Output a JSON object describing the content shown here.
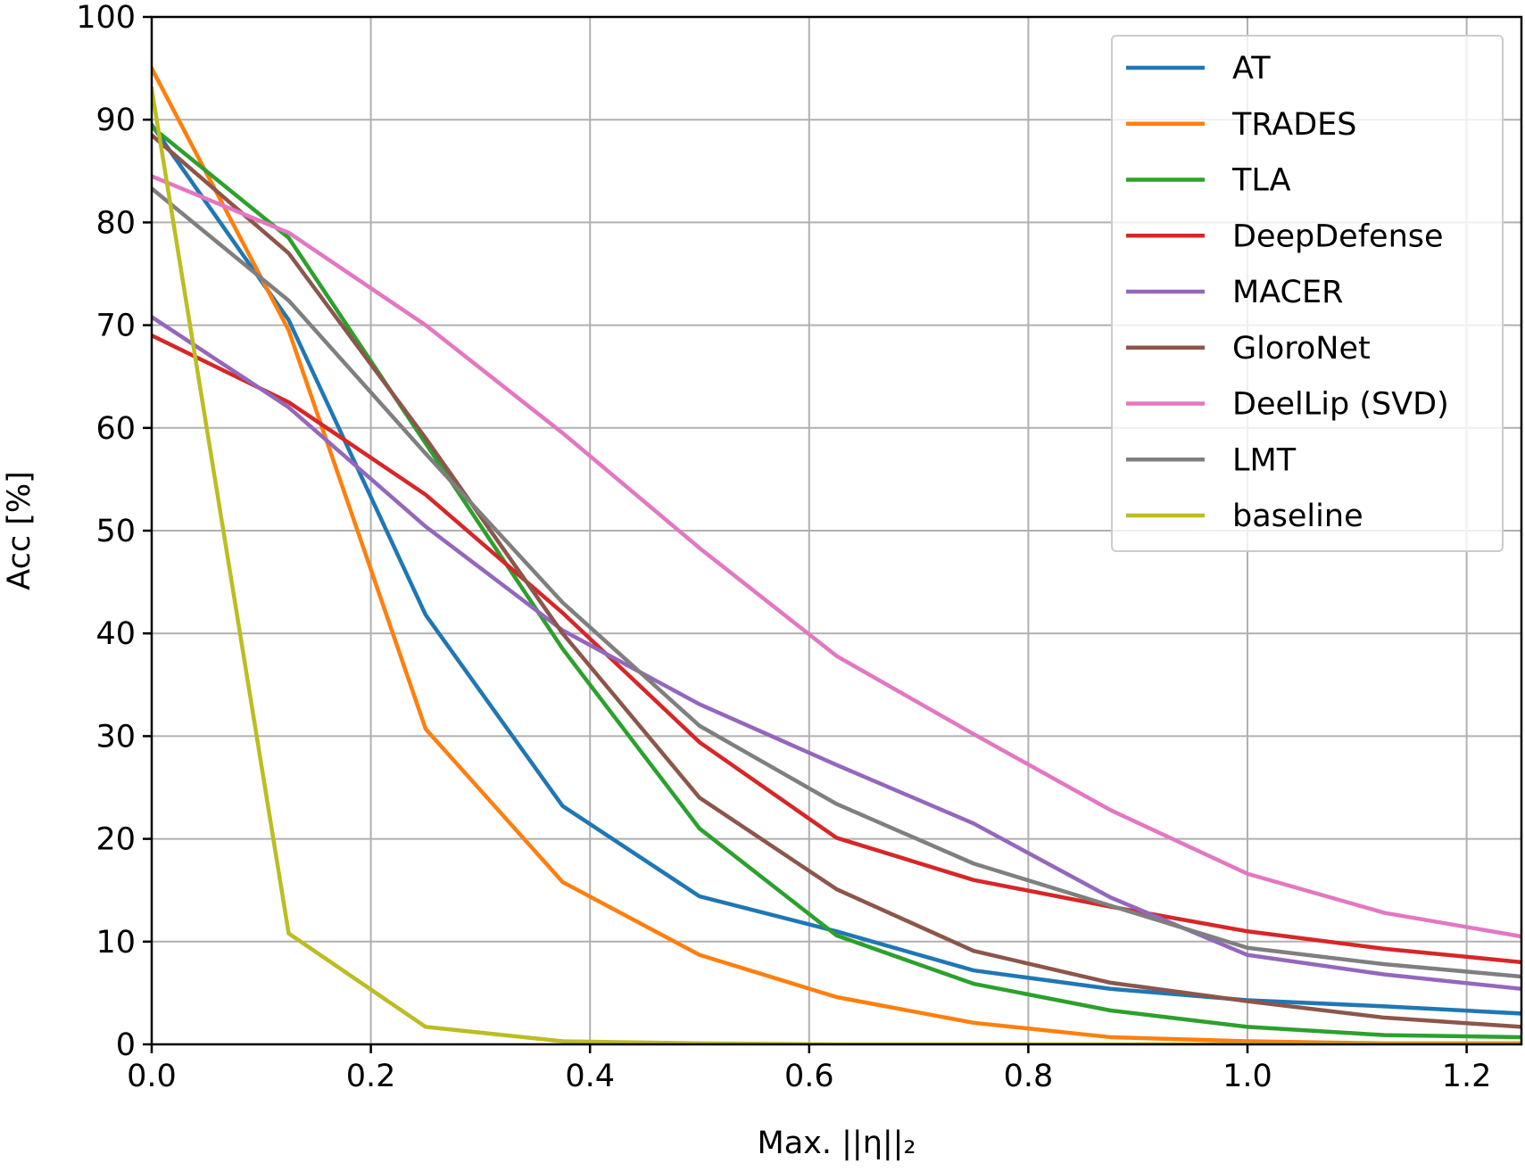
{
  "chart_data": {
    "type": "line",
    "xlabel": "Max. ||η||₂",
    "ylabel": "Acc [%]",
    "xlim": [
      0.0,
      1.25
    ],
    "ylim": [
      0,
      100
    ],
    "xticks": [
      "0.0",
      "0.2",
      "0.4",
      "0.6",
      "0.8",
      "1.0",
      "1.2"
    ],
    "yticks": [
      "0",
      "10",
      "20",
      "30",
      "40",
      "50",
      "60",
      "70",
      "80",
      "90",
      "100"
    ],
    "grid": true,
    "legend_position": "top-right",
    "x": [
      0.0,
      0.125,
      0.25,
      0.375,
      0.5,
      0.625,
      0.75,
      0.875,
      1.0,
      1.125,
      1.25
    ],
    "series": [
      {
        "name": "AT",
        "color": "#1f77b4",
        "values": [
          89.5,
          70.5,
          41.8,
          23.2,
          14.4,
          11.0,
          7.2,
          5.4,
          4.3,
          3.7,
          3.0
        ]
      },
      {
        "name": "TRADES",
        "color": "#ff7f0e",
        "values": [
          95.0,
          69.5,
          30.7,
          15.8,
          8.7,
          4.6,
          2.1,
          0.7,
          0.3,
          0.1,
          0.1
        ]
      },
      {
        "name": "TLA",
        "color": "#2ca02c",
        "values": [
          89.3,
          78.5,
          58.5,
          38.5,
          21.0,
          10.6,
          5.9,
          3.3,
          1.7,
          0.9,
          0.7
        ]
      },
      {
        "name": "DeepDefense",
        "color": "#d62728",
        "values": [
          69.0,
          62.5,
          53.5,
          42.0,
          29.4,
          20.1,
          16.0,
          13.4,
          11.0,
          9.3,
          8.0
        ]
      },
      {
        "name": "MACER",
        "color": "#9467bd",
        "values": [
          70.8,
          62.0,
          50.4,
          40.3,
          33.1,
          27.2,
          21.5,
          14.3,
          8.7,
          6.8,
          5.4
        ]
      },
      {
        "name": "GloroNet",
        "color": "#8c564b",
        "values": [
          88.5,
          77.0,
          59.0,
          40.0,
          24.0,
          15.1,
          9.1,
          6.0,
          4.2,
          2.6,
          1.7
        ]
      },
      {
        "name": "DeelLip (SVD)",
        "color": "#e377c2",
        "values": [
          84.5,
          79.0,
          70.0,
          59.5,
          48.3,
          37.8,
          30.2,
          22.8,
          16.6,
          12.8,
          10.5
        ]
      },
      {
        "name": "LMT",
        "color": "#7f7f7f",
        "values": [
          83.3,
          72.4,
          57.5,
          43.0,
          31.0,
          23.4,
          17.6,
          13.5,
          9.4,
          7.8,
          6.6
        ]
      },
      {
        "name": "baseline",
        "color": "#bcbd22",
        "values": [
          93.0,
          10.8,
          1.7,
          0.3,
          0.1,
          0.0,
          0.0,
          0.0,
          0.0,
          0.0,
          0.0
        ]
      }
    ]
  }
}
